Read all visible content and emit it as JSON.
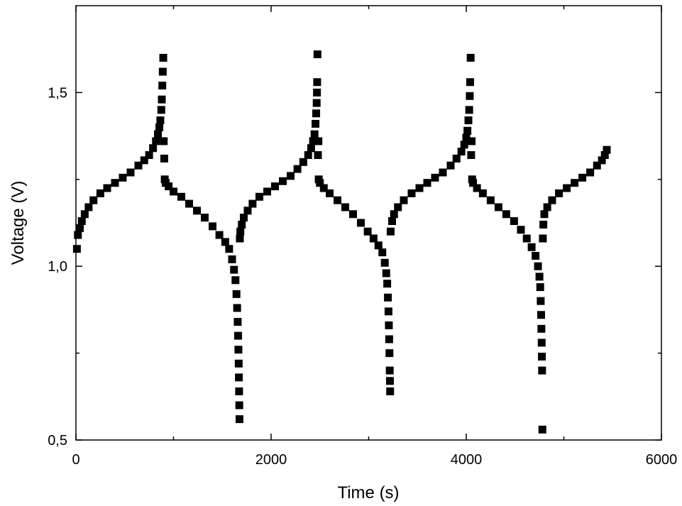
{
  "chart_data": {
    "type": "scatter",
    "title": "",
    "xlabel": "Time (s)",
    "ylabel": "Voltage (V)",
    "xlim": [
      0,
      6000
    ],
    "ylim": [
      0.5,
      1.75
    ],
    "x_ticks": [
      {
        "value": 0,
        "label": "0"
      },
      {
        "value": 2000,
        "label": "2000"
      },
      {
        "value": 4000,
        "label": "4000"
      },
      {
        "value": 6000,
        "label": "6000"
      }
    ],
    "y_ticks": [
      {
        "value": 0.5,
        "label": "0,5"
      },
      {
        "value": 1.0,
        "label": "1,0"
      },
      {
        "value": 1.5,
        "label": "1,5"
      }
    ],
    "grid": false,
    "legend": "none",
    "marker": "square",
    "marker_color": "#000000",
    "series": [
      {
        "name": "",
        "points": [
          [
            10,
            1.05
          ],
          [
            20,
            1.09
          ],
          [
            40,
            1.11
          ],
          [
            60,
            1.13
          ],
          [
            90,
            1.15
          ],
          [
            130,
            1.17
          ],
          [
            180,
            1.19
          ],
          [
            250,
            1.21
          ],
          [
            320,
            1.225
          ],
          [
            400,
            1.24
          ],
          [
            480,
            1.255
          ],
          [
            560,
            1.27
          ],
          [
            640,
            1.29
          ],
          [
            700,
            1.305
          ],
          [
            750,
            1.32
          ],
          [
            790,
            1.34
          ],
          [
            820,
            1.36
          ],
          [
            840,
            1.38
          ],
          [
            855,
            1.4
          ],
          [
            865,
            1.42
          ],
          [
            875,
            1.45
          ],
          [
            880,
            1.48
          ],
          [
            885,
            1.52
          ],
          [
            890,
            1.56
          ],
          [
            895,
            1.6
          ],
          [
            900,
            1.36
          ],
          [
            905,
            1.31
          ],
          [
            910,
            1.25
          ],
          [
            920,
            1.24
          ],
          [
            950,
            1.23
          ],
          [
            1000,
            1.215
          ],
          [
            1080,
            1.2
          ],
          [
            1160,
            1.18
          ],
          [
            1240,
            1.16
          ],
          [
            1320,
            1.14
          ],
          [
            1400,
            1.115
          ],
          [
            1470,
            1.09
          ],
          [
            1530,
            1.07
          ],
          [
            1570,
            1.05
          ],
          [
            1600,
            1.02
          ],
          [
            1620,
            0.99
          ],
          [
            1635,
            0.96
          ],
          [
            1645,
            0.92
          ],
          [
            1652,
            0.88
          ],
          [
            1658,
            0.84
          ],
          [
            1662,
            0.8
          ],
          [
            1665,
            0.76
          ],
          [
            1668,
            0.72
          ],
          [
            1670,
            0.68
          ],
          [
            1672,
            0.64
          ],
          [
            1674,
            0.6
          ],
          [
            1676,
            0.56
          ],
          [
            1680,
            1.08
          ],
          [
            1685,
            1.1
          ],
          [
            1700,
            1.12
          ],
          [
            1720,
            1.14
          ],
          [
            1760,
            1.16
          ],
          [
            1810,
            1.18
          ],
          [
            1880,
            1.2
          ],
          [
            1960,
            1.215
          ],
          [
            2040,
            1.23
          ],
          [
            2120,
            1.245
          ],
          [
            2200,
            1.26
          ],
          [
            2270,
            1.28
          ],
          [
            2330,
            1.3
          ],
          [
            2380,
            1.32
          ],
          [
            2410,
            1.34
          ],
          [
            2430,
            1.36
          ],
          [
            2445,
            1.38
          ],
          [
            2455,
            1.41
          ],
          [
            2462,
            1.44
          ],
          [
            2467,
            1.47
          ],
          [
            2470,
            1.5
          ],
          [
            2472,
            1.53
          ],
          [
            2475,
            1.61
          ],
          [
            2480,
            1.32
          ],
          [
            2485,
            1.36
          ],
          [
            2488,
            1.25
          ],
          [
            2500,
            1.24
          ],
          [
            2540,
            1.225
          ],
          [
            2600,
            1.21
          ],
          [
            2680,
            1.19
          ],
          [
            2760,
            1.17
          ],
          [
            2840,
            1.15
          ],
          [
            2920,
            1.125
          ],
          [
            2990,
            1.1
          ],
          [
            3050,
            1.08
          ],
          [
            3100,
            1.06
          ],
          [
            3140,
            1.04
          ],
          [
            3165,
            1.01
          ],
          [
            3180,
            0.98
          ],
          [
            3190,
            0.95
          ],
          [
            3197,
            0.91
          ],
          [
            3203,
            0.87
          ],
          [
            3207,
            0.83
          ],
          [
            3210,
            0.79
          ],
          [
            3213,
            0.75
          ],
          [
            3216,
            0.7
          ],
          [
            3218,
            0.67
          ],
          [
            3220,
            0.64
          ],
          [
            3225,
            1.1
          ],
          [
            3240,
            1.13
          ],
          [
            3260,
            1.15
          ],
          [
            3300,
            1.17
          ],
          [
            3360,
            1.19
          ],
          [
            3440,
            1.21
          ],
          [
            3520,
            1.225
          ],
          [
            3600,
            1.24
          ],
          [
            3680,
            1.255
          ],
          [
            3760,
            1.27
          ],
          [
            3840,
            1.29
          ],
          [
            3900,
            1.31
          ],
          [
            3950,
            1.33
          ],
          [
            3980,
            1.35
          ],
          [
            4000,
            1.37
          ],
          [
            4012,
            1.39
          ],
          [
            4022,
            1.42
          ],
          [
            4030,
            1.45
          ],
          [
            4036,
            1.49
          ],
          [
            4040,
            1.53
          ],
          [
            4045,
            1.6
          ],
          [
            4050,
            1.32
          ],
          [
            4055,
            1.36
          ],
          [
            4060,
            1.25
          ],
          [
            4070,
            1.24
          ],
          [
            4110,
            1.225
          ],
          [
            4170,
            1.21
          ],
          [
            4250,
            1.19
          ],
          [
            4330,
            1.17
          ],
          [
            4410,
            1.15
          ],
          [
            4490,
            1.13
          ],
          [
            4560,
            1.105
          ],
          [
            4620,
            1.08
          ],
          [
            4670,
            1.055
          ],
          [
            4710,
            1.03
          ],
          [
            4735,
            1.0
          ],
          [
            4750,
            0.97
          ],
          [
            4758,
            0.94
          ],
          [
            4763,
            0.9
          ],
          [
            4767,
            0.86
          ],
          [
            4770,
            0.82
          ],
          [
            4773,
            0.78
          ],
          [
            4775,
            0.74
          ],
          [
            4777,
            0.7
          ],
          [
            4780,
            0.53
          ],
          [
            4785,
            1.08
          ],
          [
            4790,
            1.12
          ],
          [
            4800,
            1.15
          ],
          [
            4830,
            1.17
          ],
          [
            4880,
            1.19
          ],
          [
            4950,
            1.21
          ],
          [
            5030,
            1.225
          ],
          [
            5110,
            1.24
          ],
          [
            5190,
            1.255
          ],
          [
            5270,
            1.27
          ],
          [
            5340,
            1.29
          ],
          [
            5390,
            1.305
          ],
          [
            5420,
            1.32
          ],
          [
            5440,
            1.335
          ]
        ]
      }
    ]
  }
}
